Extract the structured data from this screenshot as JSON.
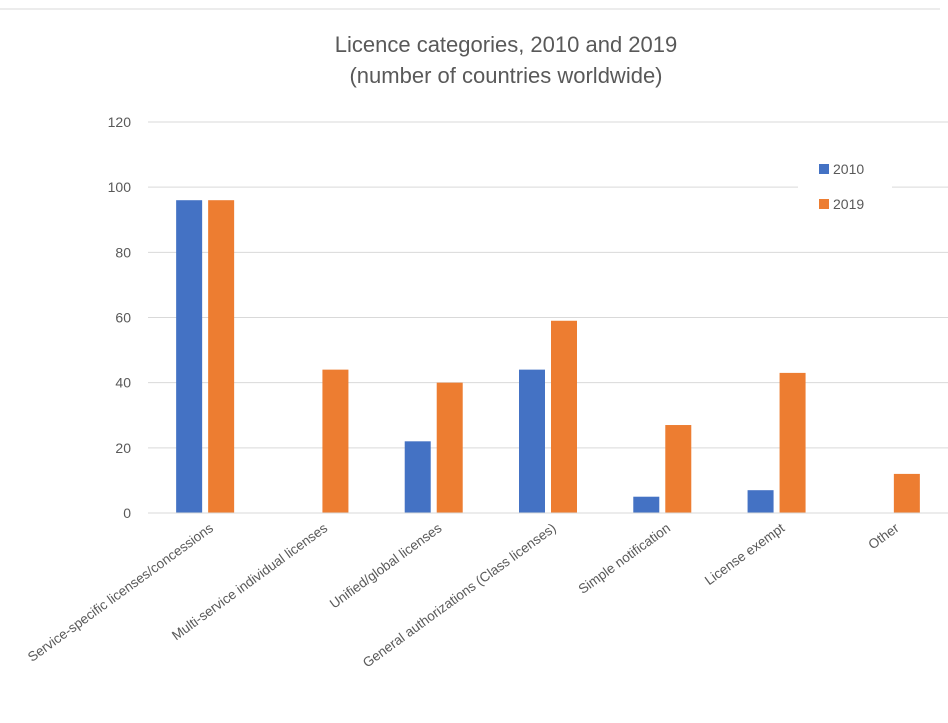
{
  "chart_data": {
    "type": "bar",
    "title": "Licence categories, 2010 and 2019",
    "subtitle": "(number of countries worldwide)",
    "categories": [
      "Service-specific licenses/concessions",
      "Multi-service individual licenses",
      "Unified/global licenses",
      "General authorizations (Class licenses)",
      "Simple notification",
      "License exempt",
      "Other"
    ],
    "series": [
      {
        "name": "2010",
        "color": "#4472C4",
        "values": [
          96,
          0,
          22,
          44,
          5,
          7,
          0
        ]
      },
      {
        "name": "2019",
        "color": "#ED7D31",
        "values": [
          96,
          44,
          40,
          59,
          27,
          43,
          12
        ]
      }
    ],
    "ylim": [
      0,
      120
    ],
    "yticks": [
      "0",
      "20",
      "40",
      "60",
      "80",
      "100",
      "120"
    ],
    "grid": true,
    "legend_position": "top-right",
    "colors": {
      "gridline": "#D9D9D9",
      "text": "#595959"
    }
  }
}
